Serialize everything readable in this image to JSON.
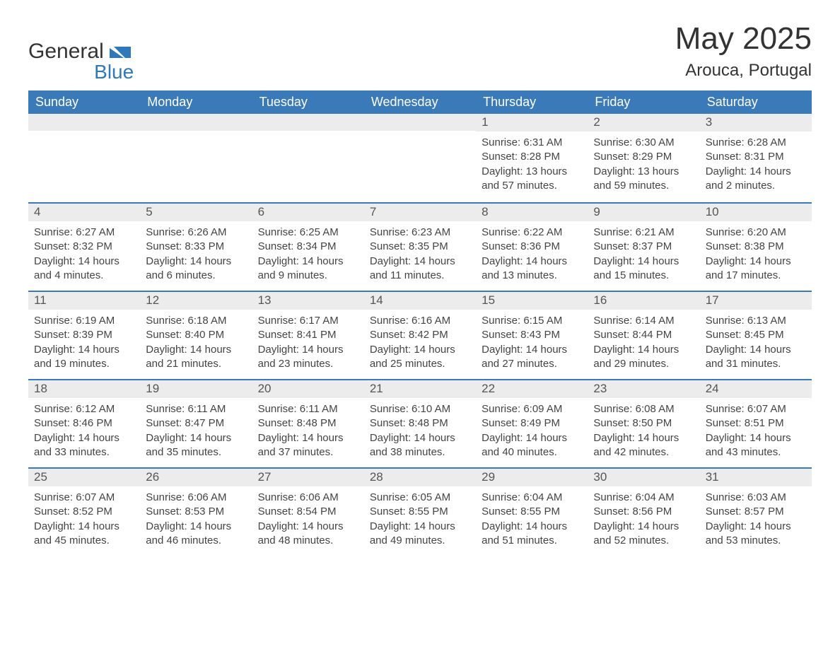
{
  "brand": {
    "name1": "General",
    "name2": "Blue"
  },
  "title": "May 2025",
  "location": "Arouca, Portugal",
  "colors": {
    "header_bg": "#3a7ab8",
    "header_text": "#ffffff",
    "daynum_bg": "#ececec",
    "border": "#3a7ab8",
    "body_text": "#444444",
    "brand_blue": "#2f78b9"
  },
  "dayNames": [
    "Sunday",
    "Monday",
    "Tuesday",
    "Wednesday",
    "Thursday",
    "Friday",
    "Saturday"
  ],
  "weeks": [
    [
      null,
      null,
      null,
      null,
      {
        "d": "1",
        "sr": "6:31 AM",
        "ss": "8:28 PM",
        "dl": "13 hours and 57 minutes."
      },
      {
        "d": "2",
        "sr": "6:30 AM",
        "ss": "8:29 PM",
        "dl": "13 hours and 59 minutes."
      },
      {
        "d": "3",
        "sr": "6:28 AM",
        "ss": "8:31 PM",
        "dl": "14 hours and 2 minutes."
      }
    ],
    [
      {
        "d": "4",
        "sr": "6:27 AM",
        "ss": "8:32 PM",
        "dl": "14 hours and 4 minutes."
      },
      {
        "d": "5",
        "sr": "6:26 AM",
        "ss": "8:33 PM",
        "dl": "14 hours and 6 minutes."
      },
      {
        "d": "6",
        "sr": "6:25 AM",
        "ss": "8:34 PM",
        "dl": "14 hours and 9 minutes."
      },
      {
        "d": "7",
        "sr": "6:23 AM",
        "ss": "8:35 PM",
        "dl": "14 hours and 11 minutes."
      },
      {
        "d": "8",
        "sr": "6:22 AM",
        "ss": "8:36 PM",
        "dl": "14 hours and 13 minutes."
      },
      {
        "d": "9",
        "sr": "6:21 AM",
        "ss": "8:37 PM",
        "dl": "14 hours and 15 minutes."
      },
      {
        "d": "10",
        "sr": "6:20 AM",
        "ss": "8:38 PM",
        "dl": "14 hours and 17 minutes."
      }
    ],
    [
      {
        "d": "11",
        "sr": "6:19 AM",
        "ss": "8:39 PM",
        "dl": "14 hours and 19 minutes."
      },
      {
        "d": "12",
        "sr": "6:18 AM",
        "ss": "8:40 PM",
        "dl": "14 hours and 21 minutes."
      },
      {
        "d": "13",
        "sr": "6:17 AM",
        "ss": "8:41 PM",
        "dl": "14 hours and 23 minutes."
      },
      {
        "d": "14",
        "sr": "6:16 AM",
        "ss": "8:42 PM",
        "dl": "14 hours and 25 minutes."
      },
      {
        "d": "15",
        "sr": "6:15 AM",
        "ss": "8:43 PM",
        "dl": "14 hours and 27 minutes."
      },
      {
        "d": "16",
        "sr": "6:14 AM",
        "ss": "8:44 PM",
        "dl": "14 hours and 29 minutes."
      },
      {
        "d": "17",
        "sr": "6:13 AM",
        "ss": "8:45 PM",
        "dl": "14 hours and 31 minutes."
      }
    ],
    [
      {
        "d": "18",
        "sr": "6:12 AM",
        "ss": "8:46 PM",
        "dl": "14 hours and 33 minutes."
      },
      {
        "d": "19",
        "sr": "6:11 AM",
        "ss": "8:47 PM",
        "dl": "14 hours and 35 minutes."
      },
      {
        "d": "20",
        "sr": "6:11 AM",
        "ss": "8:48 PM",
        "dl": "14 hours and 37 minutes."
      },
      {
        "d": "21",
        "sr": "6:10 AM",
        "ss": "8:48 PM",
        "dl": "14 hours and 38 minutes."
      },
      {
        "d": "22",
        "sr": "6:09 AM",
        "ss": "8:49 PM",
        "dl": "14 hours and 40 minutes."
      },
      {
        "d": "23",
        "sr": "6:08 AM",
        "ss": "8:50 PM",
        "dl": "14 hours and 42 minutes."
      },
      {
        "d": "24",
        "sr": "6:07 AM",
        "ss": "8:51 PM",
        "dl": "14 hours and 43 minutes."
      }
    ],
    [
      {
        "d": "25",
        "sr": "6:07 AM",
        "ss": "8:52 PM",
        "dl": "14 hours and 45 minutes."
      },
      {
        "d": "26",
        "sr": "6:06 AM",
        "ss": "8:53 PM",
        "dl": "14 hours and 46 minutes."
      },
      {
        "d": "27",
        "sr": "6:06 AM",
        "ss": "8:54 PM",
        "dl": "14 hours and 48 minutes."
      },
      {
        "d": "28",
        "sr": "6:05 AM",
        "ss": "8:55 PM",
        "dl": "14 hours and 49 minutes."
      },
      {
        "d": "29",
        "sr": "6:04 AM",
        "ss": "8:55 PM",
        "dl": "14 hours and 51 minutes."
      },
      {
        "d": "30",
        "sr": "6:04 AM",
        "ss": "8:56 PM",
        "dl": "14 hours and 52 minutes."
      },
      {
        "d": "31",
        "sr": "6:03 AM",
        "ss": "8:57 PM",
        "dl": "14 hours and 53 minutes."
      }
    ]
  ],
  "labels": {
    "sunrise": "Sunrise: ",
    "sunset": "Sunset: ",
    "daylight": "Daylight: "
  }
}
